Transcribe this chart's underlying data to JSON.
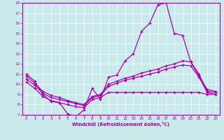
{
  "xlabel": "Windchill (Refroidissement éolien,°C)",
  "bg_color": "#c8eaea",
  "grid_color": "#b0d0d0",
  "line_color": "#aa00aa",
  "xlim": [
    -0.5,
    23.5
  ],
  "ylim": [
    7,
    18
  ],
  "xticks": [
    0,
    1,
    2,
    3,
    4,
    5,
    6,
    7,
    8,
    9,
    10,
    11,
    12,
    13,
    14,
    15,
    16,
    17,
    18,
    19,
    20,
    21,
    22,
    23
  ],
  "yticks": [
    7,
    8,
    9,
    10,
    11,
    12,
    13,
    14,
    15,
    16,
    17,
    18
  ],
  "line1_x": [
    0,
    1,
    2,
    3,
    4,
    5,
    6,
    7,
    8,
    9,
    10,
    11,
    12,
    13,
    14,
    15,
    16,
    17,
    18,
    19,
    20,
    21,
    22,
    23
  ],
  "line1_y": [
    11.0,
    10.3,
    9.0,
    8.3,
    8.2,
    7.1,
    6.8,
    7.5,
    9.6,
    8.5,
    10.7,
    10.9,
    12.3,
    13.0,
    15.2,
    16.0,
    17.8,
    18.0,
    15.0,
    14.8,
    12.2,
    10.8,
    9.5,
    9.3
  ],
  "line2_x": [
    0,
    1,
    2,
    3,
    4,
    5,
    6,
    7,
    8,
    9,
    10,
    11,
    12,
    13,
    14,
    15,
    16,
    17,
    18,
    19,
    20,
    21,
    22,
    23
  ],
  "line2_y": [
    10.8,
    10.1,
    9.3,
    8.9,
    8.7,
    8.4,
    8.2,
    8.0,
    8.8,
    9.0,
    10.0,
    10.3,
    10.6,
    10.8,
    11.1,
    11.3,
    11.5,
    11.8,
    12.0,
    12.3,
    12.2,
    11.0,
    9.3,
    9.2
  ],
  "line3_x": [
    0,
    1,
    2,
    3,
    4,
    5,
    6,
    7,
    8,
    9,
    10,
    11,
    12,
    13,
    14,
    15,
    16,
    17,
    18,
    19,
    20,
    21,
    22,
    23
  ],
  "line3_y": [
    10.5,
    9.9,
    9.1,
    8.7,
    8.5,
    8.3,
    8.1,
    7.9,
    8.7,
    8.9,
    9.8,
    10.1,
    10.4,
    10.6,
    10.8,
    11.0,
    11.2,
    11.5,
    11.7,
    11.9,
    11.8,
    10.7,
    9.2,
    9.0
  ],
  "line4_x": [
    0,
    1,
    2,
    3,
    4,
    5,
    6,
    7,
    8,
    9,
    10,
    11,
    12,
    13,
    14,
    15,
    16,
    17,
    18,
    19,
    20,
    21,
    22,
    23
  ],
  "line4_y": [
    10.2,
    9.6,
    8.8,
    8.4,
    8.2,
    8.0,
    7.8,
    7.7,
    8.5,
    8.7,
    9.2,
    9.2,
    9.2,
    9.2,
    9.2,
    9.2,
    9.2,
    9.2,
    9.2,
    9.2,
    9.2,
    9.2,
    9.0,
    9.0
  ]
}
